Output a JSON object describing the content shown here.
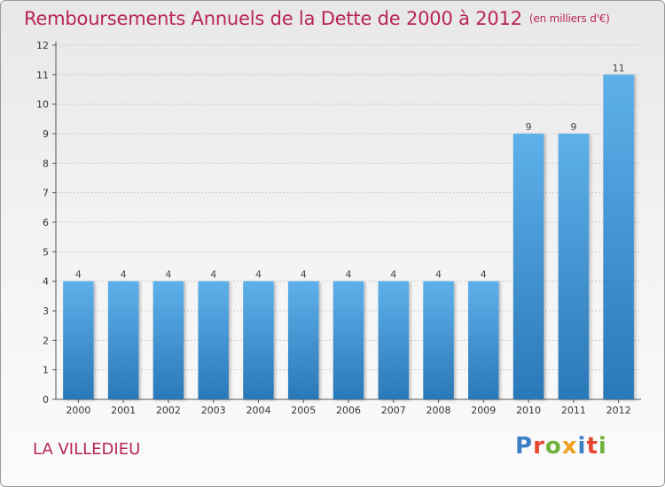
{
  "header": {
    "title": "Remboursements Annuels de la Dette de 2000 à 2012",
    "unit": "(en milliers d'€)"
  },
  "footer": {
    "commune": "LA VILLEDIEU",
    "logo_text": "Proxiti",
    "logo_colors": [
      "#3b7fc4",
      "#e8442d",
      "#6fb23a",
      "#f0a020",
      "#3b7fc4",
      "#e8442d",
      "#6fb23a"
    ]
  },
  "colors": {
    "title": "#b8245a",
    "bar_top": "#5eb0ea",
    "bar_bottom": "#2a78b8",
    "grid": "#cccccc"
  },
  "chart_data": {
    "type": "bar",
    "title": "Remboursements Annuels de la Dette de 2000 à 2012",
    "subtitle": "(en milliers d'€)",
    "categories": [
      "2000",
      "2001",
      "2002",
      "2003",
      "2004",
      "2005",
      "2006",
      "2007",
      "2008",
      "2009",
      "2010",
      "2011",
      "2012"
    ],
    "values": [
      4,
      4,
      4,
      4,
      4,
      4,
      4,
      4,
      4,
      4,
      9,
      9,
      11
    ],
    "data_labels": [
      "4",
      "4",
      "4",
      "4",
      "4",
      "4",
      "4",
      "4",
      "4",
      "4",
      "9",
      "9",
      "11"
    ],
    "yticks": [
      "0",
      "1",
      "2",
      "3",
      "4",
      "5",
      "6",
      "7",
      "8",
      "9",
      "10",
      "11",
      "12"
    ],
    "ylim": [
      0,
      12
    ],
    "grid": true,
    "xlabel": "",
    "ylabel": ""
  }
}
